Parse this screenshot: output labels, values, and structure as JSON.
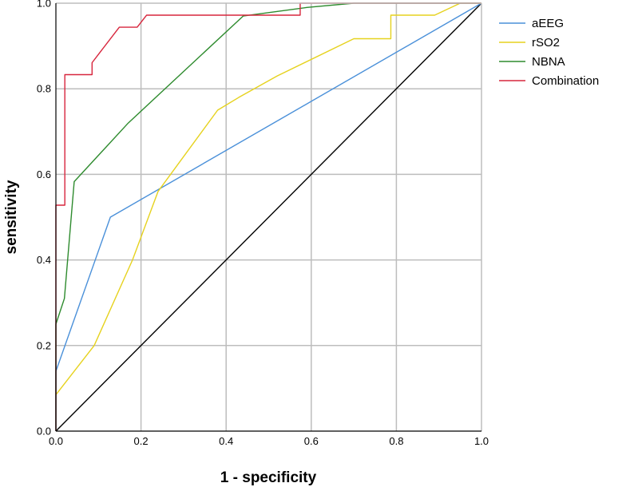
{
  "chart_data": {
    "type": "line",
    "title": "",
    "xlabel": "1 - specificity",
    "ylabel": "sensitivity",
    "xlim": [
      0,
      1
    ],
    "ylim": [
      0,
      1
    ],
    "x_ticks": [
      "0.0",
      "0.2",
      "0.4",
      "0.6",
      "0.8",
      "1.0"
    ],
    "y_ticks": [
      "0.0",
      "0.2",
      "0.4",
      "0.6",
      "0.8",
      "1.0"
    ],
    "grid": true,
    "legend_position": "right",
    "reference_line": {
      "color": "#000000",
      "points": [
        [
          0,
          0
        ],
        [
          1,
          1
        ]
      ]
    },
    "series": [
      {
        "name": "aEEG",
        "color": "#4a90d9",
        "points": [
          [
            0,
            0
          ],
          [
            0,
            0.14
          ],
          [
            0.128,
            0.5
          ],
          [
            1,
            1
          ]
        ]
      },
      {
        "name": "rSO2",
        "color": "#e6d21e",
        "points": [
          [
            0,
            0.085
          ],
          [
            0.09,
            0.2
          ],
          [
            0.18,
            0.4
          ],
          [
            0.24,
            0.56
          ],
          [
            0.38,
            0.75
          ],
          [
            0.43,
            0.78
          ],
          [
            0.52,
            0.83
          ],
          [
            0.7,
            0.917
          ],
          [
            0.787,
            0.917
          ],
          [
            0.787,
            0.972
          ],
          [
            0.89,
            0.972
          ],
          [
            0.95,
            1.0
          ],
          [
            1,
            1
          ]
        ]
      },
      {
        "name": "NBNA",
        "color": "#2e8b2e",
        "points": [
          [
            0,
            0
          ],
          [
            0,
            0.25
          ],
          [
            0.02,
            0.31
          ],
          [
            0.043,
            0.583
          ],
          [
            0.17,
            0.72
          ],
          [
            0.44,
            0.97
          ],
          [
            0.59,
            0.99
          ],
          [
            0.7,
            1.0
          ],
          [
            1,
            1
          ]
        ]
      },
      {
        "name": "Combination",
        "color": "#d7263d",
        "points": [
          [
            0,
            0
          ],
          [
            0,
            0.528
          ],
          [
            0.021,
            0.528
          ],
          [
            0.021,
            0.833
          ],
          [
            0.085,
            0.833
          ],
          [
            0.085,
            0.861
          ],
          [
            0.149,
            0.944
          ],
          [
            0.191,
            0.944
          ],
          [
            0.213,
            0.972
          ],
          [
            0.574,
            0.972
          ],
          [
            0.574,
            1.0
          ],
          [
            1,
            1
          ]
        ]
      }
    ]
  }
}
